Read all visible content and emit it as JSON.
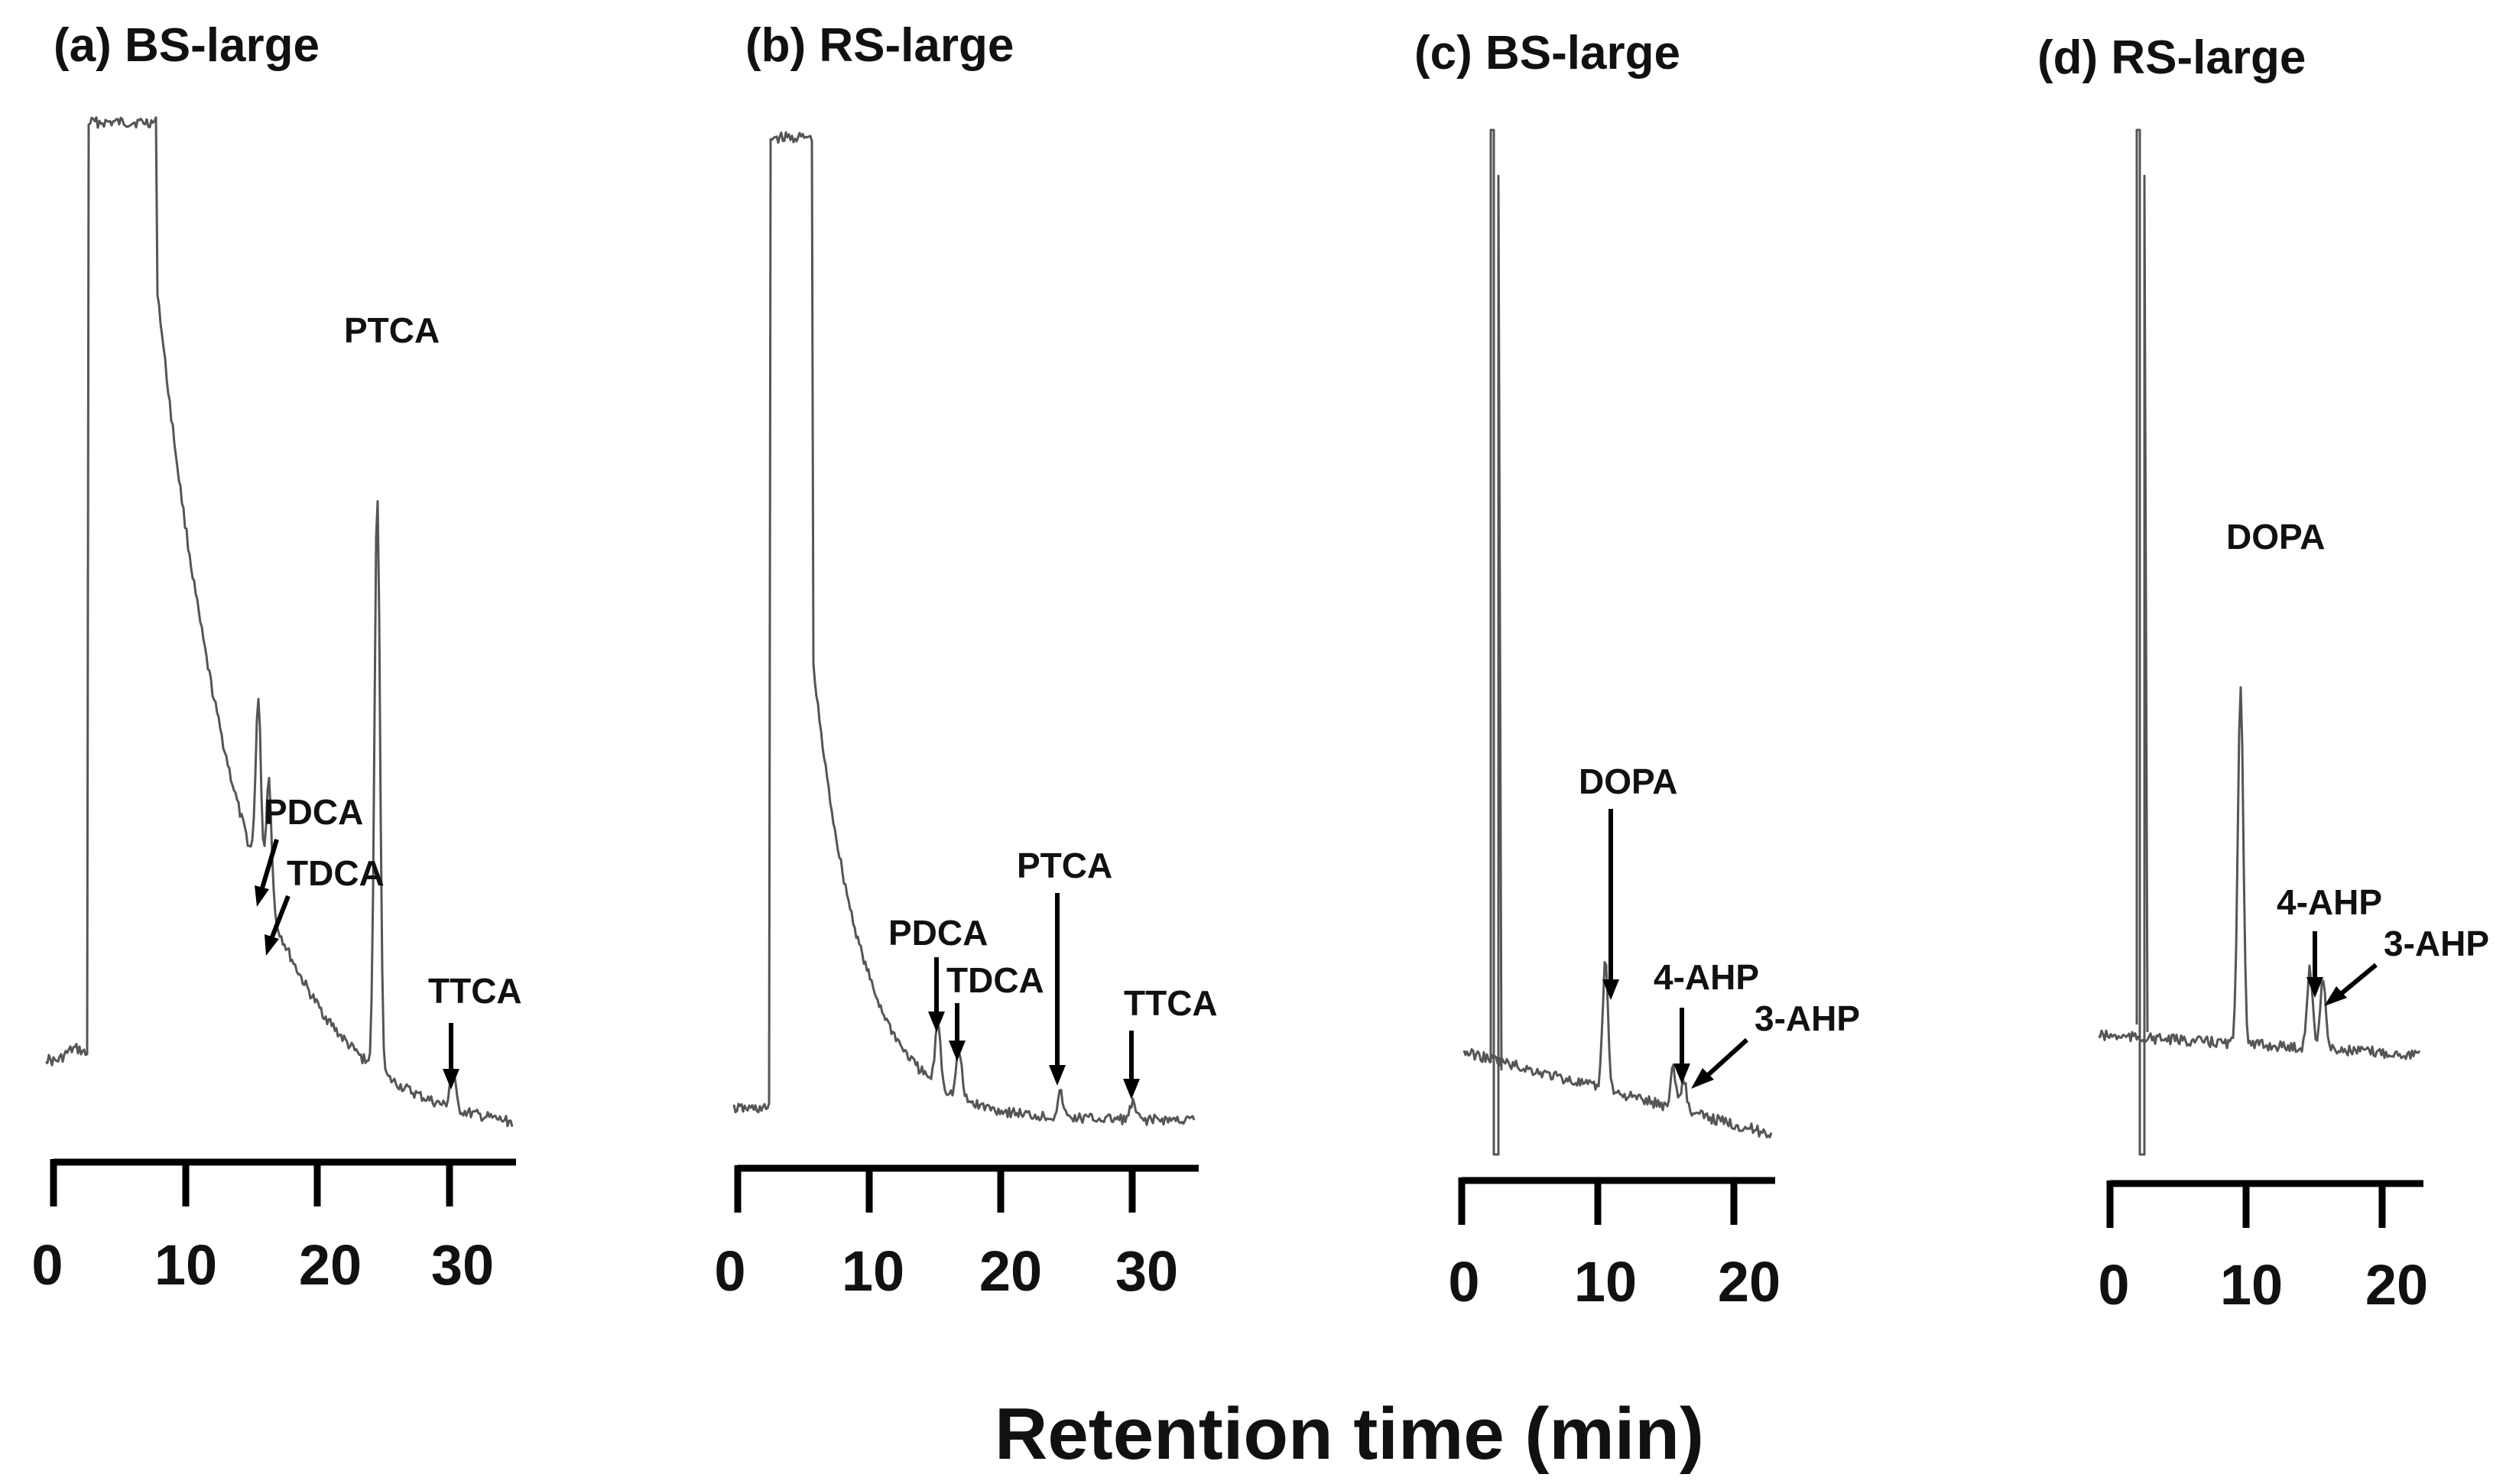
{
  "chart_data": [
    {
      "type": "line",
      "title": "(a) BS-large",
      "xlim": [
        0,
        35
      ],
      "xticks": [
        0,
        10,
        20,
        30
      ],
      "peaks": [
        {
          "label": "PTCA",
          "x": 24.5,
          "height": 0.73,
          "arrow": false
        },
        {
          "label": "PDCA",
          "x": 15.5,
          "height": 0.22,
          "arrow": true
        },
        {
          "label": "TDCA",
          "x": 16.3,
          "height": 0.16,
          "arrow": true
        },
        {
          "label": "TTCA",
          "x": 30.2,
          "height": 0.05,
          "arrow": true
        }
      ]
    },
    {
      "type": "line",
      "title": "(b) RS-large",
      "xlim": [
        0,
        35
      ],
      "xticks": [
        0,
        10,
        20,
        30
      ],
      "peaks": [
        {
          "label": "PDCA",
          "x": 15.2,
          "height": 0.08,
          "arrow": true
        },
        {
          "label": "TDCA",
          "x": 16.8,
          "height": 0.06,
          "arrow": true
        },
        {
          "label": "PTCA",
          "x": 24.5,
          "height": 0.03,
          "arrow": true
        },
        {
          "label": "TTCA",
          "x": 30.0,
          "height": 0.02,
          "arrow": true
        }
      ]
    },
    {
      "type": "line",
      "title": "(c) BS-large",
      "xlim": [
        0,
        24
      ],
      "xticks": [
        0,
        10,
        20
      ],
      "peaks": [
        {
          "label": "DOPA",
          "x": 11.0,
          "height": 0.16,
          "arrow": true
        },
        {
          "label": "4-AHP",
          "x": 16.2,
          "height": 0.05,
          "arrow": true
        },
        {
          "label": "3-AHP",
          "x": 17.0,
          "height": 0.04,
          "arrow": true
        }
      ]
    },
    {
      "type": "line",
      "title": "(d) RS-large",
      "xlim": [
        0,
        24
      ],
      "xticks": [
        0,
        10,
        20
      ],
      "peaks": [
        {
          "label": "DOPA",
          "x": 10.0,
          "height": 0.45,
          "arrow": false
        },
        {
          "label": "4-AHP",
          "x": 15.3,
          "height": 0.1,
          "arrow": true
        },
        {
          "label": "3-AHP",
          "x": 16.3,
          "height": 0.09,
          "arrow": true
        }
      ]
    }
  ],
  "xlabel": "Retention time (min)"
}
